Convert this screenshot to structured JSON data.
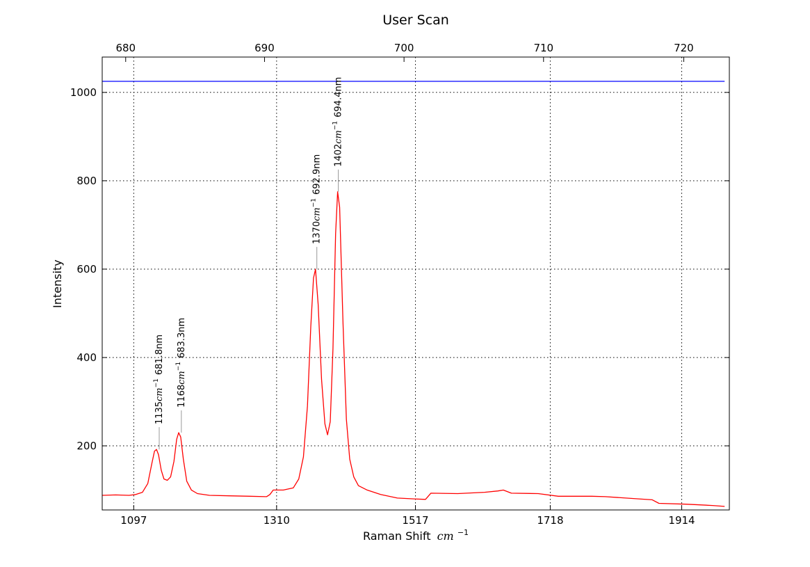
{
  "chart_data": {
    "type": "line",
    "title": "User Scan",
    "xlabel": "Raman Shift",
    "xlabel_unit": "cm",
    "xlabel_unit_exp": "−1",
    "ylabel": "Intensity",
    "xlim": [
      1050,
      1985
    ],
    "ylim": [
      55,
      1080
    ],
    "x_ticks": [
      {
        "value": 1097,
        "label": "1097"
      },
      {
        "value": 1310,
        "label": "1310"
      },
      {
        "value": 1517,
        "label": "1517"
      },
      {
        "value": 1718,
        "label": "1718"
      },
      {
        "value": 1914,
        "label": "1914"
      }
    ],
    "top_ticks": [
      {
        "value": 1085,
        "label": "680"
      },
      {
        "value": 1292,
        "label": "690"
      },
      {
        "value": 1500,
        "label": "700"
      },
      {
        "value": 1708,
        "label": "710"
      },
      {
        "value": 1917,
        "label": "720"
      }
    ],
    "y_ticks": [
      {
        "value": 200,
        "label": "200"
      },
      {
        "value": 400,
        "label": "400"
      },
      {
        "value": 600,
        "label": "600"
      },
      {
        "value": 800,
        "label": "800"
      },
      {
        "value": 1000,
        "label": "1000"
      }
    ],
    "grid": true,
    "series": [
      {
        "color": "#ff0000",
        "points": [
          [
            1050,
            88
          ],
          [
            1070,
            89
          ],
          [
            1090,
            88
          ],
          [
            1100,
            90
          ],
          [
            1110,
            95
          ],
          [
            1118,
            115
          ],
          [
            1124,
            160
          ],
          [
            1128,
            188
          ],
          [
            1131,
            192
          ],
          [
            1134,
            180
          ],
          [
            1138,
            145
          ],
          [
            1142,
            125
          ],
          [
            1147,
            122
          ],
          [
            1152,
            130
          ],
          [
            1157,
            165
          ],
          [
            1161,
            215
          ],
          [
            1164,
            230
          ],
          [
            1167,
            220
          ],
          [
            1171,
            170
          ],
          [
            1176,
            120
          ],
          [
            1183,
            100
          ],
          [
            1192,
            92
          ],
          [
            1210,
            88
          ],
          [
            1240,
            87
          ],
          [
            1270,
            86
          ],
          [
            1295,
            85
          ],
          [
            1300,
            90
          ],
          [
            1305,
            100
          ],
          [
            1320,
            100
          ],
          [
            1335,
            105
          ],
          [
            1343,
            125
          ],
          [
            1350,
            175
          ],
          [
            1356,
            290
          ],
          [
            1361,
            470
          ],
          [
            1365,
            580
          ],
          [
            1368,
            600
          ],
          [
            1372,
            520
          ],
          [
            1377,
            350
          ],
          [
            1382,
            250
          ],
          [
            1386,
            225
          ],
          [
            1390,
            255
          ],
          [
            1394,
            420
          ],
          [
            1398,
            680
          ],
          [
            1401,
            775
          ],
          [
            1404,
            740
          ],
          [
            1409,
            480
          ],
          [
            1414,
            260
          ],
          [
            1419,
            170
          ],
          [
            1425,
            130
          ],
          [
            1432,
            110
          ],
          [
            1445,
            100
          ],
          [
            1465,
            90
          ],
          [
            1490,
            82
          ],
          [
            1515,
            80
          ],
          [
            1532,
            79
          ],
          [
            1540,
            93
          ],
          [
            1580,
            92
          ],
          [
            1620,
            95
          ],
          [
            1640,
            98
          ],
          [
            1648,
            100
          ],
          [
            1660,
            93
          ],
          [
            1700,
            92
          ],
          [
            1730,
            86
          ],
          [
            1780,
            86
          ],
          [
            1800,
            85
          ],
          [
            1850,
            80
          ],
          [
            1870,
            78
          ],
          [
            1880,
            70
          ],
          [
            1920,
            68
          ],
          [
            1960,
            65
          ],
          [
            1978,
            63
          ]
        ]
      },
      {
        "color": "#0000ff",
        "points": [
          [
            1050,
            1025
          ],
          [
            1978,
            1025
          ]
        ]
      }
    ],
    "annotations": [
      {
        "x": 1135,
        "y": 192,
        "wavenumber": "1135",
        "wavelength": "681.8nm"
      },
      {
        "x": 1168,
        "y": 230,
        "wavenumber": "1168",
        "wavelength": "683.3nm"
      },
      {
        "x": 1370,
        "y": 600,
        "wavenumber": "1370",
        "wavelength": "692.9nm"
      },
      {
        "x": 1402,
        "y": 775,
        "wavenumber": "1402",
        "wavelength": "694.4nm"
      }
    ],
    "annotation_unit": "cm",
    "annotation_unit_exp": "−1"
  }
}
